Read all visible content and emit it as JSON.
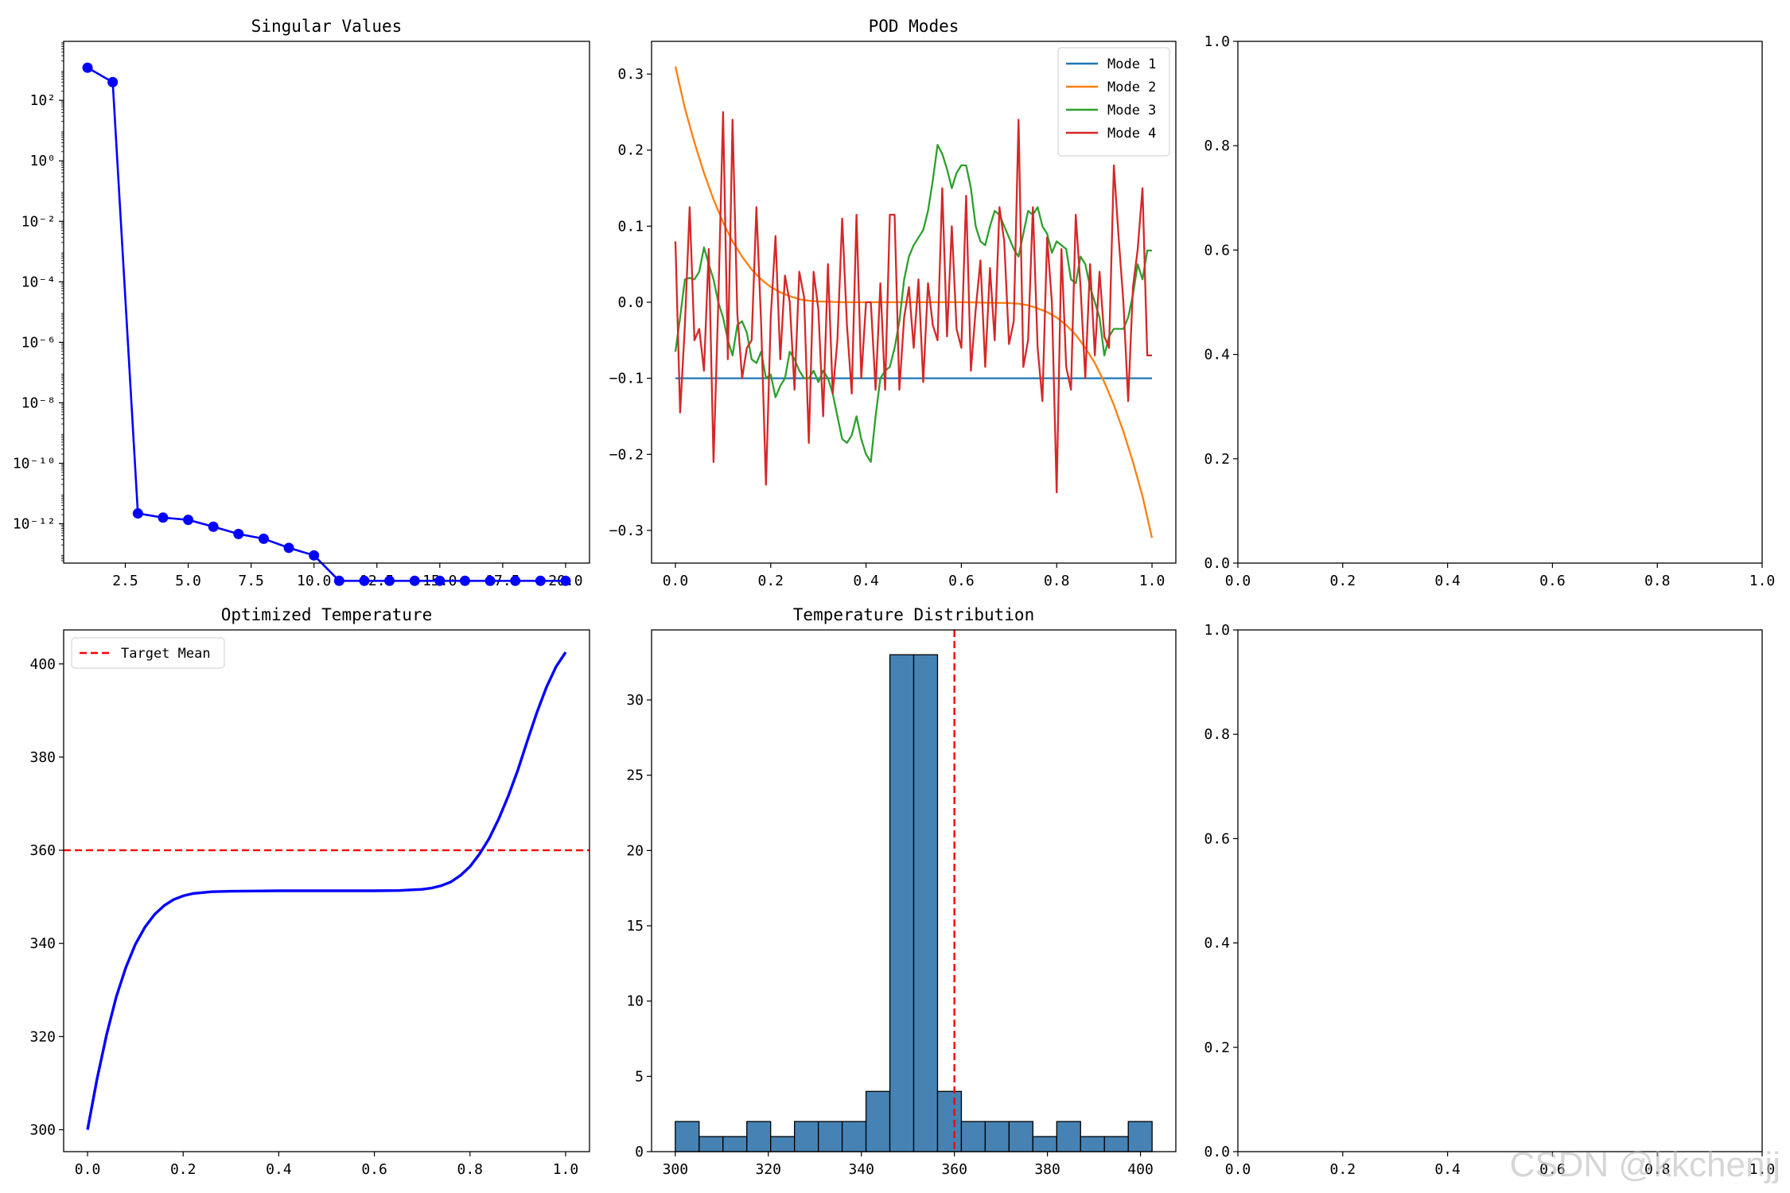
{
  "watermark": "CSDN @kkchenjj",
  "chart_data": [
    {
      "id": "singular",
      "type": "line",
      "title": "Singular Values",
      "xlabel": "",
      "ylabel": "",
      "yscale": "log",
      "xlim": [
        0.05,
        20.95
      ],
      "ylim_log10": [
        -13.3,
        3.95
      ],
      "xticks": [
        2.5,
        5.0,
        7.5,
        10.0,
        12.5,
        15.0,
        17.5,
        20.0
      ],
      "xticklabels": [
        "2.5",
        "5.0",
        "7.5",
        "10.0",
        "12.5",
        "15.0",
        "17.5",
        "20.0"
      ],
      "ytick_exponents": [
        2,
        0,
        -2,
        -4,
        -6,
        -8,
        -10,
        -12
      ],
      "yticklabels": [
        "10²",
        "10⁰",
        "10⁻²",
        "10⁻⁴",
        "10⁻⁶",
        "10⁻⁸",
        "10⁻¹⁰",
        "10⁻¹²"
      ],
      "color": "#0000ff",
      "x": [
        1,
        2,
        3,
        4,
        5,
        6,
        7,
        8,
        9,
        10,
        11,
        12,
        13,
        14,
        15,
        16,
        17,
        18,
        19,
        20
      ],
      "y": [
        1200,
        400,
        2.2e-12,
        1.6e-12,
        1.35e-12,
        8e-13,
        4.6e-13,
        3.2e-13,
        1.6e-13,
        9e-14,
        1.3e-14,
        1.3e-14,
        1.3e-14,
        1.3e-14,
        1.3e-14,
        1.3e-14,
        1.3e-14,
        1.3e-14,
        1.3e-14,
        1.3e-14
      ]
    },
    {
      "id": "modes",
      "type": "line",
      "title": "POD Modes",
      "xlabel": "",
      "ylabel": "",
      "xlim": [
        -0.05,
        1.05
      ],
      "ylim": [
        -0.343,
        0.343
      ],
      "xticks": [
        0.0,
        0.2,
        0.4,
        0.6,
        0.8,
        1.0
      ],
      "xticklabels": [
        "0.0",
        "0.2",
        "0.4",
        "0.6",
        "0.8",
        "1.0"
      ],
      "yticks": [
        -0.3,
        -0.2,
        -0.1,
        0.0,
        0.1,
        0.2,
        0.3
      ],
      "yticklabels": [
        "−0.3",
        "−0.2",
        "−0.1",
        "0.0",
        "0.1",
        "0.2",
        "0.3"
      ],
      "legend_position": "upper right",
      "series": [
        {
          "name": "Mode 1",
          "color": "#1f77b4",
          "x": [
            0,
            1
          ],
          "y": [
            -0.1,
            -0.1
          ]
        },
        {
          "name": "Mode 2",
          "color": "#ff7f0e",
          "x": [
            0,
            0.02,
            0.04,
            0.06,
            0.08,
            0.1,
            0.12,
            0.14,
            0.16,
            0.18,
            0.2,
            0.22,
            0.24,
            0.26,
            0.28,
            0.3,
            0.35,
            0.4,
            0.5,
            0.6,
            0.7,
            0.72,
            0.74,
            0.76,
            0.78,
            0.8,
            0.82,
            0.84,
            0.86,
            0.88,
            0.9,
            0.92,
            0.94,
            0.96,
            0.98,
            1.0
          ],
          "y": [
            0.31,
            0.255,
            0.21,
            0.17,
            0.135,
            0.105,
            0.08,
            0.06,
            0.043,
            0.03,
            0.02,
            0.013,
            0.008,
            0.004,
            0.002,
            0.001,
            0.0,
            0.0,
            0.0,
            0.0,
            -0.001,
            -0.002,
            -0.004,
            -0.008,
            -0.013,
            -0.02,
            -0.03,
            -0.043,
            -0.06,
            -0.08,
            -0.105,
            -0.135,
            -0.17,
            -0.21,
            -0.255,
            -0.31
          ]
        },
        {
          "name": "Mode 3",
          "color": "#2ca02c",
          "x": [
            0,
            0.01,
            0.02,
            0.03,
            0.04,
            0.05,
            0.06,
            0.07,
            0.08,
            0.09,
            0.1,
            0.11,
            0.12,
            0.13,
            0.14,
            0.15,
            0.16,
            0.17,
            0.18,
            0.19,
            0.2,
            0.21,
            0.22,
            0.23,
            0.24,
            0.25,
            0.26,
            0.27,
            0.28,
            0.29,
            0.3,
            0.31,
            0.32,
            0.33,
            0.34,
            0.35,
            0.36,
            0.37,
            0.38,
            0.39,
            0.4,
            0.41,
            0.42,
            0.43,
            0.44,
            0.45,
            0.46,
            0.47,
            0.48,
            0.49,
            0.5,
            0.51,
            0.52,
            0.53,
            0.54,
            0.55,
            0.56,
            0.57,
            0.58,
            0.59,
            0.6,
            0.61,
            0.62,
            0.63,
            0.64,
            0.65,
            0.66,
            0.67,
            0.68,
            0.69,
            0.7,
            0.71,
            0.72,
            0.73,
            0.74,
            0.75,
            0.76,
            0.77,
            0.78,
            0.79,
            0.8,
            0.81,
            0.82,
            0.83,
            0.84,
            0.85,
            0.86,
            0.87,
            0.88,
            0.89,
            0.9,
            0.91,
            0.92,
            0.93,
            0.94,
            0.95,
            0.96,
            0.97,
            0.98,
            0.99,
            1.0
          ],
          "y": [
            -0.065,
            -0.02,
            0.03,
            0.032,
            0.03,
            0.04,
            0.072,
            0.05,
            0.03,
            0.0,
            -0.02,
            -0.05,
            -0.07,
            -0.03,
            -0.025,
            -0.04,
            -0.075,
            -0.08,
            -0.065,
            -0.1,
            -0.095,
            -0.125,
            -0.11,
            -0.1,
            -0.065,
            -0.075,
            -0.09,
            -0.1,
            -0.1,
            -0.09,
            -0.105,
            -0.09,
            -0.1,
            -0.12,
            -0.15,
            -0.18,
            -0.185,
            -0.175,
            -0.15,
            -0.18,
            -0.2,
            -0.21,
            -0.15,
            -0.1,
            -0.09,
            -0.085,
            -0.06,
            -0.025,
            0.03,
            0.06,
            0.075,
            0.085,
            0.095,
            0.12,
            0.16,
            0.207,
            0.195,
            0.175,
            0.15,
            0.17,
            0.18,
            0.18,
            0.15,
            0.1,
            0.08,
            0.075,
            0.1,
            0.12,
            0.115,
            0.1,
            0.085,
            0.07,
            0.06,
            0.09,
            0.12,
            0.115,
            0.125,
            0.1,
            0.09,
            0.065,
            0.08,
            0.075,
            0.07,
            0.03,
            0.025,
            0.06,
            0.05,
            0.02,
            0.0,
            -0.02,
            -0.07,
            -0.045,
            -0.035,
            -0.035,
            -0.035,
            -0.02,
            0.01,
            0.05,
            0.03,
            0.068,
            0.068
          ]
        },
        {
          "name": "Mode 4",
          "color": "#d62728",
          "x": [
            0,
            0.01,
            0.02,
            0.03,
            0.04,
            0.05,
            0.06,
            0.07,
            0.08,
            0.09,
            0.1,
            0.11,
            0.12,
            0.13,
            0.14,
            0.15,
            0.16,
            0.17,
            0.18,
            0.19,
            0.2,
            0.21,
            0.22,
            0.23,
            0.24,
            0.25,
            0.26,
            0.27,
            0.28,
            0.29,
            0.3,
            0.31,
            0.32,
            0.33,
            0.34,
            0.35,
            0.36,
            0.37,
            0.38,
            0.39,
            0.4,
            0.41,
            0.42,
            0.43,
            0.44,
            0.45,
            0.46,
            0.47,
            0.48,
            0.49,
            0.5,
            0.51,
            0.52,
            0.53,
            0.54,
            0.55,
            0.56,
            0.57,
            0.58,
            0.59,
            0.6,
            0.61,
            0.62,
            0.63,
            0.64,
            0.65,
            0.66,
            0.67,
            0.68,
            0.69,
            0.7,
            0.71,
            0.72,
            0.73,
            0.74,
            0.75,
            0.76,
            0.77,
            0.78,
            0.79,
            0.8,
            0.81,
            0.82,
            0.83,
            0.84,
            0.85,
            0.86,
            0.87,
            0.88,
            0.89,
            0.9,
            0.91,
            0.92,
            0.93,
            0.94,
            0.95,
            0.96,
            0.97,
            0.98,
            0.99,
            1.0
          ],
          "y": [
            0.08,
            -0.145,
            -0.03,
            0.125,
            -0.05,
            -0.035,
            -0.09,
            0.07,
            -0.21,
            0.0,
            0.25,
            -0.075,
            0.24,
            -0.015,
            -0.1,
            -0.06,
            -0.05,
            0.125,
            -0.03,
            -0.24,
            -0.02,
            0.087,
            -0.075,
            0.035,
            0.0,
            -0.115,
            0.04,
            0.007,
            -0.185,
            0.04,
            -0.01,
            -0.15,
            0.05,
            -0.12,
            -0.05,
            0.11,
            -0.03,
            -0.12,
            0.115,
            -0.1,
            0.0,
            0.0,
            -0.115,
            0.025,
            -0.115,
            0.115,
            0.115,
            -0.115,
            -0.02,
            0.02,
            -0.06,
            0.03,
            -0.105,
            0.025,
            -0.03,
            -0.05,
            0.15,
            -0.045,
            0.1,
            -0.035,
            -0.06,
            0.14,
            -0.09,
            -0.01,
            0.055,
            -0.085,
            0.045,
            -0.05,
            0.125,
            0.08,
            -0.055,
            -0.025,
            0.24,
            -0.085,
            -0.05,
            0.125,
            -0.06,
            -0.13,
            0.085,
            0.0,
            -0.25,
            0.07,
            -0.085,
            -0.115,
            0.115,
            0.02,
            -0.1,
            0.05,
            -0.07,
            0.04,
            -0.045,
            -0.06,
            0.18,
            0.085,
            0.0,
            -0.13,
            0.02,
            0.07,
            0.15,
            -0.07,
            -0.07
          ]
        }
      ]
    },
    {
      "id": "empty_top",
      "type": "line",
      "title": "",
      "xlim": [
        0,
        1
      ],
      "ylim": [
        0,
        1
      ],
      "xticklabels": [
        "0.0",
        "0.2",
        "0.4",
        "0.6",
        "0.8",
        "1.0"
      ],
      "yticklabels": [
        "0.0",
        "0.2",
        "0.4",
        "0.6",
        "0.8",
        "1.0"
      ],
      "series": []
    },
    {
      "id": "optimized",
      "type": "line",
      "title": "Optimized Temperature",
      "xlabel": "",
      "ylabel": "",
      "xlim": [
        -0.05,
        1.05
      ],
      "ylim": [
        295.3,
        407.3
      ],
      "xticks": [
        0.0,
        0.2,
        0.4,
        0.6,
        0.8,
        1.0
      ],
      "xticklabels": [
        "0.0",
        "0.2",
        "0.4",
        "0.6",
        "0.8",
        "1.0"
      ],
      "yticks": [
        300,
        320,
        340,
        360,
        380,
        400
      ],
      "yticklabels": [
        "300",
        "320",
        "340",
        "360",
        "380",
        "400"
      ],
      "legend_position": "upper left",
      "hline": {
        "y": 360,
        "label": "Target Mean",
        "color": "#ff0000"
      },
      "series": [
        {
          "name": "",
          "color": "#0000ff",
          "x": [
            0,
            0.02,
            0.04,
            0.06,
            0.08,
            0.1,
            0.12,
            0.14,
            0.16,
            0.18,
            0.2,
            0.22,
            0.24,
            0.26,
            0.3,
            0.35,
            0.4,
            0.5,
            0.6,
            0.65,
            0.7,
            0.72,
            0.74,
            0.76,
            0.78,
            0.8,
            0.82,
            0.84,
            0.86,
            0.88,
            0.9,
            0.92,
            0.94,
            0.96,
            0.98,
            1.0
          ],
          "y": [
            300,
            311,
            320.5,
            328.5,
            334.8,
            339.8,
            343.5,
            346.2,
            348.1,
            349.4,
            350.2,
            350.7,
            350.9,
            351.1,
            351.2,
            351.25,
            351.3,
            351.3,
            351.3,
            351.35,
            351.6,
            351.9,
            352.4,
            353.2,
            354.6,
            356.5,
            359.2,
            362.5,
            366.7,
            371.6,
            377.2,
            383.5,
            389.6,
            395,
            399.4,
            402.5
          ]
        }
      ]
    },
    {
      "id": "histogram",
      "type": "bar",
      "title": "Temperature Distribution",
      "xlabel": "",
      "ylabel": "",
      "xlim": [
        294.9,
        407.6
      ],
      "ylim": [
        0,
        34.65
      ],
      "xticks": [
        300,
        320,
        340,
        360,
        380,
        400
      ],
      "xticklabels": [
        "300",
        "320",
        "340",
        "360",
        "380",
        "400"
      ],
      "yticks": [
        0,
        5,
        10,
        15,
        20,
        25,
        30
      ],
      "yticklabels": [
        "0",
        "5",
        "10",
        "15",
        "20",
        "25",
        "30"
      ],
      "bar_color": "#4682b4",
      "bin_start": 300,
      "bin_width": 5.125,
      "counts": [
        2,
        1,
        1,
        2,
        1,
        2,
        2,
        2,
        4,
        33,
        33,
        4,
        2,
        2,
        2,
        1,
        2,
        1,
        1,
        2
      ],
      "vline": {
        "x": 360,
        "color": "#ff0000"
      }
    },
    {
      "id": "empty_bottom",
      "type": "line",
      "title": "",
      "xlim": [
        0,
        1
      ],
      "ylim": [
        0,
        1
      ],
      "xticklabels": [
        "0.0",
        "0.2",
        "0.4",
        "0.6",
        "0.8",
        "1.0"
      ],
      "yticklabels": [
        "0.0",
        "0.2",
        "0.4",
        "0.6",
        "0.8",
        "1.0"
      ],
      "series": []
    }
  ]
}
